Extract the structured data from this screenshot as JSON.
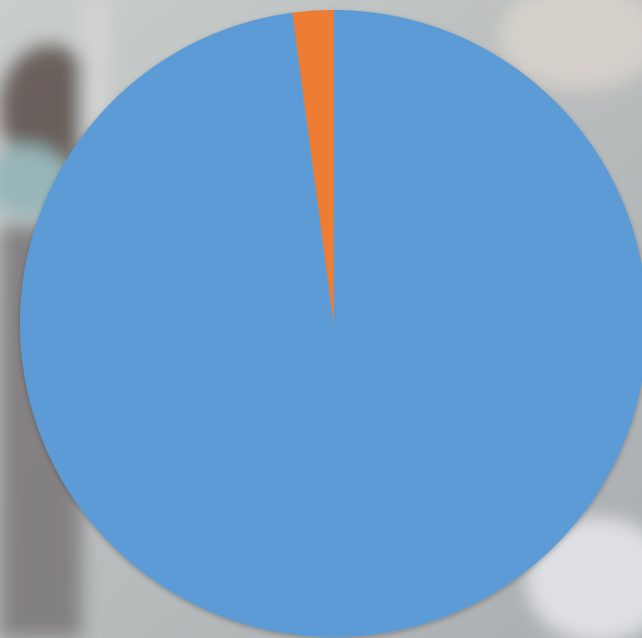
{
  "chart_data": {
    "type": "pie",
    "values": [
      97.9,
      2.1
    ],
    "colors": [
      "#5b9bd5",
      "#ed7d31"
    ],
    "start_angle": 0,
    "direction": "clockwise"
  }
}
